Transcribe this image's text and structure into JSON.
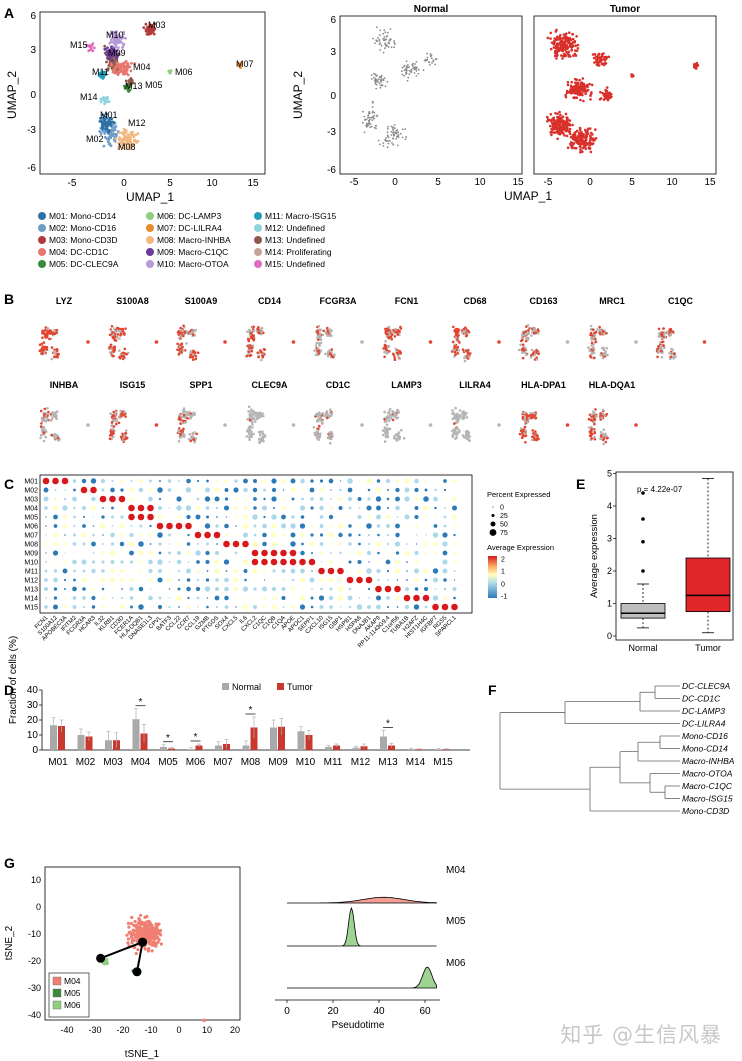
{
  "panel_letters": [
    "A",
    "B",
    "C",
    "D",
    "E",
    "F",
    "G"
  ],
  "watermark": "知乎 @生信风暴",
  "panel_a": {
    "xlabel": "UMAP_1",
    "ylabel": "UMAP_2",
    "xticks": [
      "-5",
      "0",
      "5",
      "10",
      "15"
    ],
    "yticks": [
      "6",
      "3",
      "0",
      "-3",
      "-6"
    ],
    "split_titles": [
      "Normal",
      "Tumor"
    ],
    "cluster_labels": [
      "M03",
      "M15",
      "M10",
      "M09",
      "M11",
      "M04",
      "M06",
      "M07",
      "M13",
      "M05",
      "M14",
      "M01",
      "M12",
      "M02",
      "M08"
    ],
    "legend": [
      {
        "label": "M01: Mono-CD14",
        "color": "#2d6fa6"
      },
      {
        "label": "M02: Mono-CD16",
        "color": "#6e9ec7"
      },
      {
        "label": "M03: Mono-CD3D",
        "color": "#b23a3a"
      },
      {
        "label": "M04: DC-CD1C",
        "color": "#e8776f"
      },
      {
        "label": "M05: DC-CLEC9A",
        "color": "#3b8a3b"
      },
      {
        "label": "M06: DC-LAMP3",
        "color": "#8fcf7f"
      },
      {
        "label": "M07: DC-LILRA4",
        "color": "#e88b2a"
      },
      {
        "label": "M08: Macro-INHBA",
        "color": "#f2b882"
      },
      {
        "label": "M09: Macro-C1QC",
        "color": "#6a3d9a"
      },
      {
        "label": "M10: Macro-OTOA",
        "color": "#b79ad6"
      },
      {
        "label": "M11: Macro-ISG15",
        "color": "#1f9fb8"
      },
      {
        "label": "M12: Undefined",
        "color": "#8fd3de"
      },
      {
        "label": "M13: Undefined",
        "color": "#8c5a4a"
      },
      {
        "label": "M14: Proliferating",
        "color": "#c7a39a"
      },
      {
        "label": "M15: Undefined",
        "color": "#e16bc0"
      }
    ]
  },
  "panel_b": {
    "genes_row1": [
      "LYZ",
      "S100A8",
      "S100A9",
      "CD14",
      "FCGR3A",
      "FCN1",
      "CD68",
      "CD163",
      "MRC1",
      "C1QC"
    ],
    "genes_row2": [
      "INHBA",
      "ISG15",
      "SPP1",
      "CLEC9A",
      "CD1C",
      "LAMP3",
      "LILRA4",
      "HLA-DPA1",
      "HLA-DQA1"
    ]
  },
  "panel_c": {
    "rows": [
      "M01",
      "M02",
      "M03",
      "M04",
      "M05",
      "M06",
      "M07",
      "M08",
      "M09",
      "M10",
      "M11",
      "M12",
      "M13",
      "M14",
      "M15"
    ],
    "genes": [
      "FCN1",
      "S100A12",
      "APOBEC3A",
      "IFITM2",
      "FCGR3A",
      "HCAR3",
      "IL32",
      "KLRB1",
      "CD3D",
      "FCER1A",
      "HLA-DQB1",
      "DNASE1L3",
      "CPVL",
      "BATF3",
      "CCL22",
      "CCR7",
      "CCL19",
      "GZMB",
      "PTGDS",
      "SOX4",
      "CXCL5",
      "IL6",
      "CXCL2",
      "C1QC",
      "C1QB",
      "C1QA",
      "APOE",
      "APOC1",
      "SEPP1",
      "CXCL10",
      "ISG15",
      "GBP1",
      "HSPB1",
      "HSPA6",
      "DNAJB1",
      "AKAP9",
      "RP11-1143G9.4",
      "C1orf56",
      "TUBA1B",
      "H2AFZ",
      "HIST1H4C",
      "IGFBP7",
      "RGS5",
      "SPARCL1"
    ],
    "size_legend_title": "Percent Expressed",
    "size_legend": [
      "0",
      "25",
      "50",
      "75"
    ],
    "color_legend_title": "Average Expression",
    "color_ticks": [
      "2",
      "1",
      "0",
      "-1"
    ]
  },
  "panel_e": {
    "ylabel": "Average expression",
    "yticks": [
      "0",
      "1",
      "2",
      "3",
      "4",
      "5"
    ],
    "pvalue": "p = 4.22e-07",
    "categories": [
      "Normal",
      "Tumor"
    ]
  },
  "chart_data": [
    {
      "type": "bar",
      "ylabel": "Fraction of cells (%)",
      "categories": [
        "M01",
        "M02",
        "M03",
        "M04",
        "M05",
        "M06",
        "M07",
        "M08",
        "M09",
        "M10",
        "M11",
        "M12",
        "M13",
        "M14",
        "M15"
      ],
      "ylim": [
        0,
        40
      ],
      "yticks": [
        "0",
        "10",
        "20",
        "30",
        "40"
      ],
      "series": [
        {
          "name": "Normal",
          "color": "#a9a9a9",
          "values": [
            16.5,
            10,
            6.5,
            20.5,
            2,
            0.5,
            3,
            3,
            15,
            12.5,
            2,
            1.5,
            9,
            0.5,
            0.5
          ],
          "err": [
            5,
            4,
            6,
            7,
            1.5,
            1,
            2.5,
            3,
            5,
            3,
            1,
            1,
            4,
            0.5,
            0.5
          ]
        },
        {
          "name": "Tumor",
          "color": "#c9382e",
          "values": [
            16,
            9,
            6.5,
            11,
            1,
            3,
            4,
            15,
            15.5,
            10,
            3,
            2.5,
            3,
            0.5,
            0.5
          ],
          "err": [
            4,
            3,
            5,
            6,
            0.8,
            1,
            3,
            7,
            5.5,
            3,
            1,
            1.5,
            1.5,
            0.3,
            0.3
          ]
        }
      ],
      "significant": [
        "M04",
        "M05",
        "M06",
        "M08",
        "M13"
      ],
      "sig_marker": "*"
    },
    {
      "type": "box",
      "categories": [
        "Normal",
        "Tumor"
      ],
      "ylim": [
        0,
        5
      ],
      "boxes": [
        {
          "name": "Normal",
          "min": 0.25,
          "q1": 0.55,
          "median": 0.7,
          "q3": 1.0,
          "max": 1.6,
          "outliers": [
            2.0,
            2.9,
            3.6,
            4.4
          ],
          "color": "#bdbdbd"
        },
        {
          "name": "Tumor",
          "min": 0.1,
          "q1": 0.75,
          "median": 1.25,
          "q3": 2.4,
          "max": 4.85,
          "outliers": [],
          "color": "#e0262a"
        }
      ]
    },
    {
      "type": "line",
      "xlabel": "Pseudotime",
      "xticks": [
        "0",
        "20",
        "40",
        "60"
      ],
      "xlim": [
        0,
        65
      ],
      "series": [
        {
          "name": "M04",
          "color": "#f07f72",
          "peak": 42,
          "height": 0.15,
          "width": 9
        },
        {
          "name": "M05",
          "color": "#7cc46f",
          "peak": 28,
          "height": 1.0,
          "width": 1.2
        },
        {
          "name": "M06",
          "color": "#7cc46f",
          "peak": 61,
          "height": 0.55,
          "width": 2
        }
      ]
    }
  ],
  "panel_f": {
    "leaves": [
      "DC-CLEC9A",
      "DC-CD1C",
      "DC-LAMP3",
      "DC-LILRA4",
      "Mono-CD16",
      "Mono-CD14",
      "Macro-INHBA",
      "Macro-OTOA",
      "Macro-C1QC",
      "Macro-ISG15",
      "Mono-CD3D"
    ]
  },
  "panel_g": {
    "xlabel": "tSNE_1",
    "ylabel": "tSNE_2",
    "xticks": [
      "-40",
      "-30",
      "-20",
      "-10",
      "0",
      "10",
      "20"
    ],
    "yticks": [
      "10",
      "0",
      "-10",
      "-20",
      "-30",
      "-40"
    ],
    "legend": [
      {
        "label": "M04",
        "color": "#f07f72"
      },
      {
        "label": "M05",
        "color": "#3b8a3b"
      },
      {
        "label": "M06",
        "color": "#8fcf7f"
      }
    ]
  }
}
